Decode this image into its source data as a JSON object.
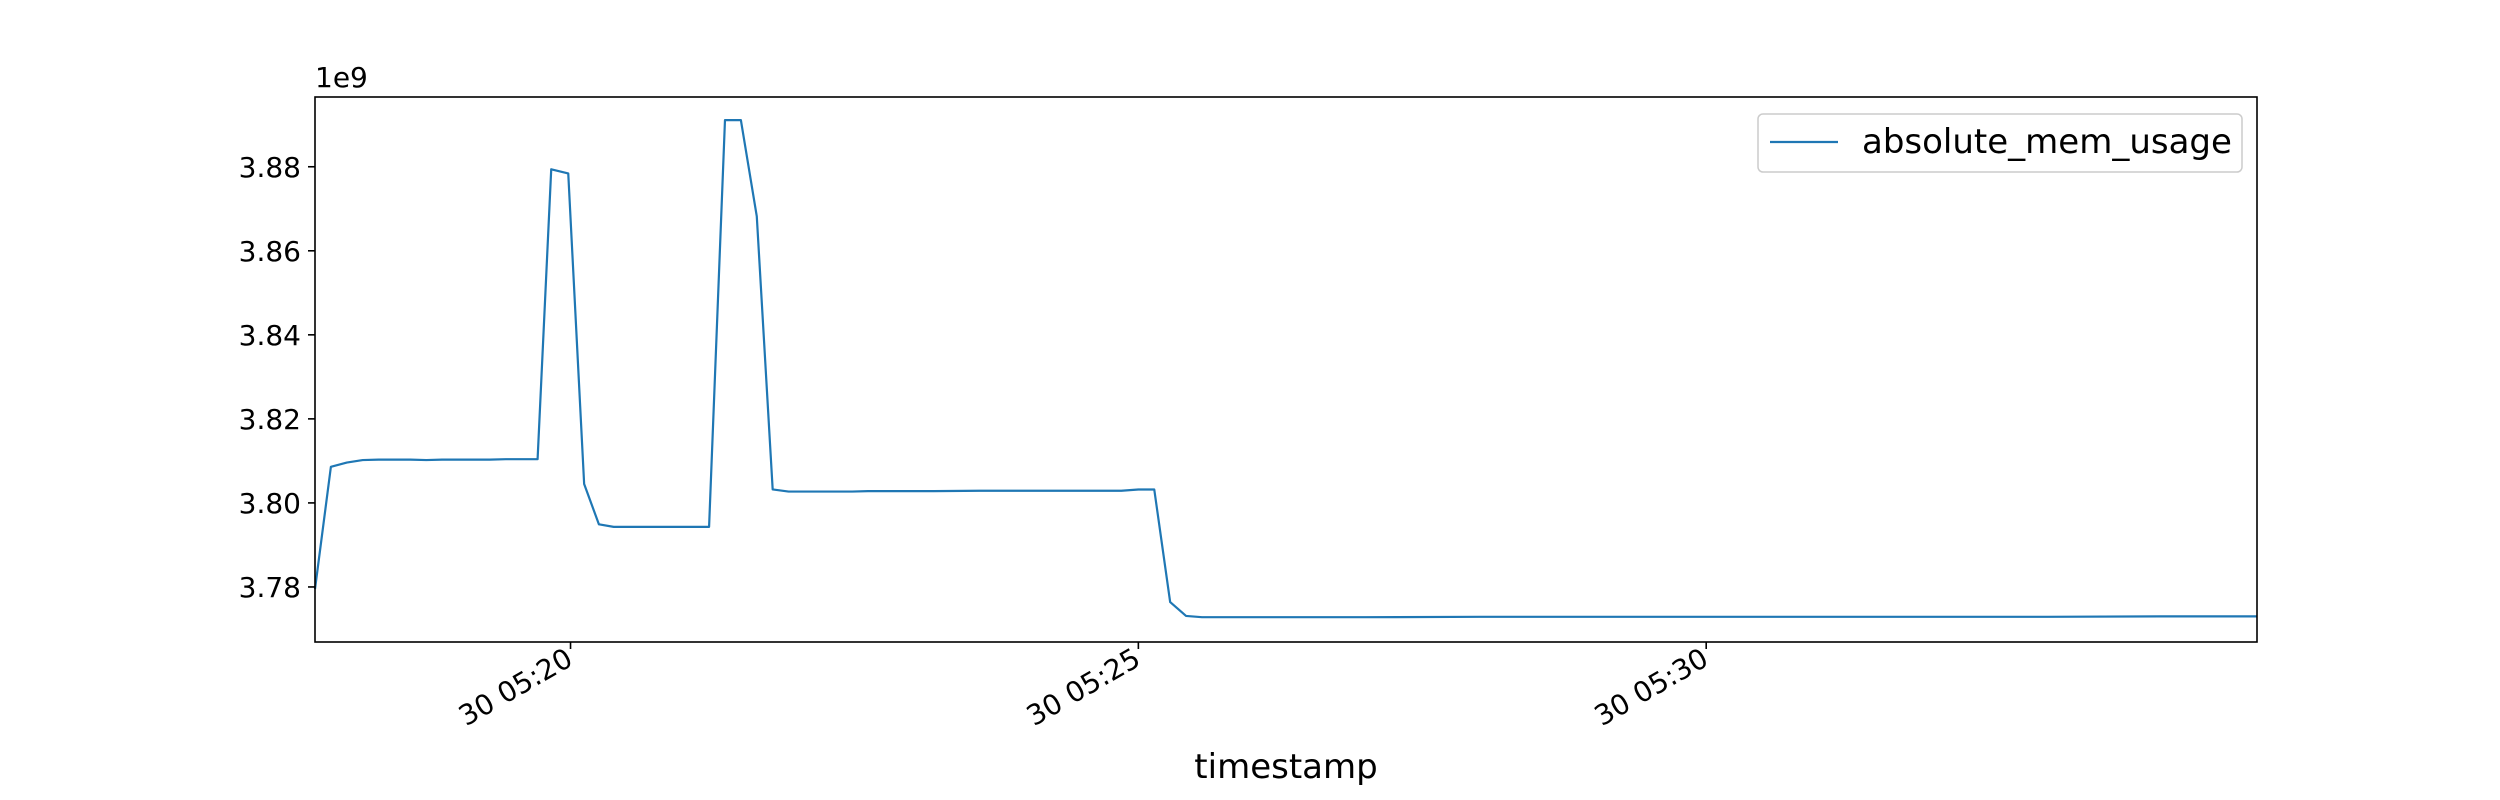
{
  "chart_data": {
    "type": "line",
    "title": "",
    "xlabel": "timestamp",
    "ylabel": "",
    "y_offset_text": "1e9",
    "x_unit": "minutes past 05:00 on day 30",
    "xlim": [
      17.75,
      34.85
    ],
    "ylim": [
      3.7669,
      3.8966
    ],
    "x_ticks": [
      {
        "value": 20,
        "label": "30 05:20"
      },
      {
        "value": 25,
        "label": "30 05:25"
      },
      {
        "value": 30,
        "label": "30 05:30"
      }
    ],
    "y_ticks": [
      {
        "value": 3.78,
        "label": "3.78"
      },
      {
        "value": 3.8,
        "label": "3.80"
      },
      {
        "value": 3.82,
        "label": "3.82"
      },
      {
        "value": 3.84,
        "label": "3.84"
      },
      {
        "value": 3.86,
        "label": "3.86"
      },
      {
        "value": 3.88,
        "label": "3.88"
      }
    ],
    "grid": false,
    "legend_position": "top-right",
    "series": [
      {
        "name": "absolute_mem_usage",
        "color": "#1f77b4",
        "x": [
          17.75,
          17.89,
          18.03,
          18.17,
          18.31,
          18.45,
          18.59,
          18.73,
          18.87,
          19.01,
          19.15,
          19.29,
          19.43,
          19.57,
          19.71,
          19.83,
          19.98,
          20.12,
          20.25,
          20.38,
          20.52,
          20.66,
          20.8,
          20.94,
          21.08,
          21.22,
          21.36,
          21.5,
          21.64,
          21.78,
          21.92,
          22.06,
          22.2,
          22.34,
          22.48,
          22.62,
          22.8,
          23.2,
          23.6,
          24.0,
          24.4,
          24.7,
          24.85,
          25.0,
          25.14,
          25.28,
          25.42,
          25.56,
          25.7,
          26.0,
          27.0,
          28.0,
          29.0,
          30.0,
          31.0,
          32.0,
          33.0,
          34.0,
          34.85
        ],
        "y": [
          3.7795,
          3.8086,
          3.8096,
          3.8102,
          3.8103,
          3.8103,
          3.8103,
          3.8102,
          3.8103,
          3.8103,
          3.8103,
          3.8103,
          3.8104,
          3.8104,
          3.8104,
          3.8794,
          3.8784,
          3.8045,
          3.7949,
          3.7943,
          3.7943,
          3.7943,
          3.7943,
          3.7943,
          3.7943,
          3.7943,
          3.8911,
          3.8911,
          3.8682,
          3.8032,
          3.8027,
          3.8027,
          3.8027,
          3.8027,
          3.8027,
          3.8028,
          3.8028,
          3.8028,
          3.8029,
          3.8029,
          3.8029,
          3.8029,
          3.8029,
          3.8032,
          3.8032,
          3.7764,
          3.7731,
          3.7728,
          3.7728,
          3.7728,
          3.7728,
          3.7729,
          3.7729,
          3.7729,
          3.7729,
          3.7729,
          3.7729,
          3.773,
          3.773
        ]
      }
    ]
  }
}
